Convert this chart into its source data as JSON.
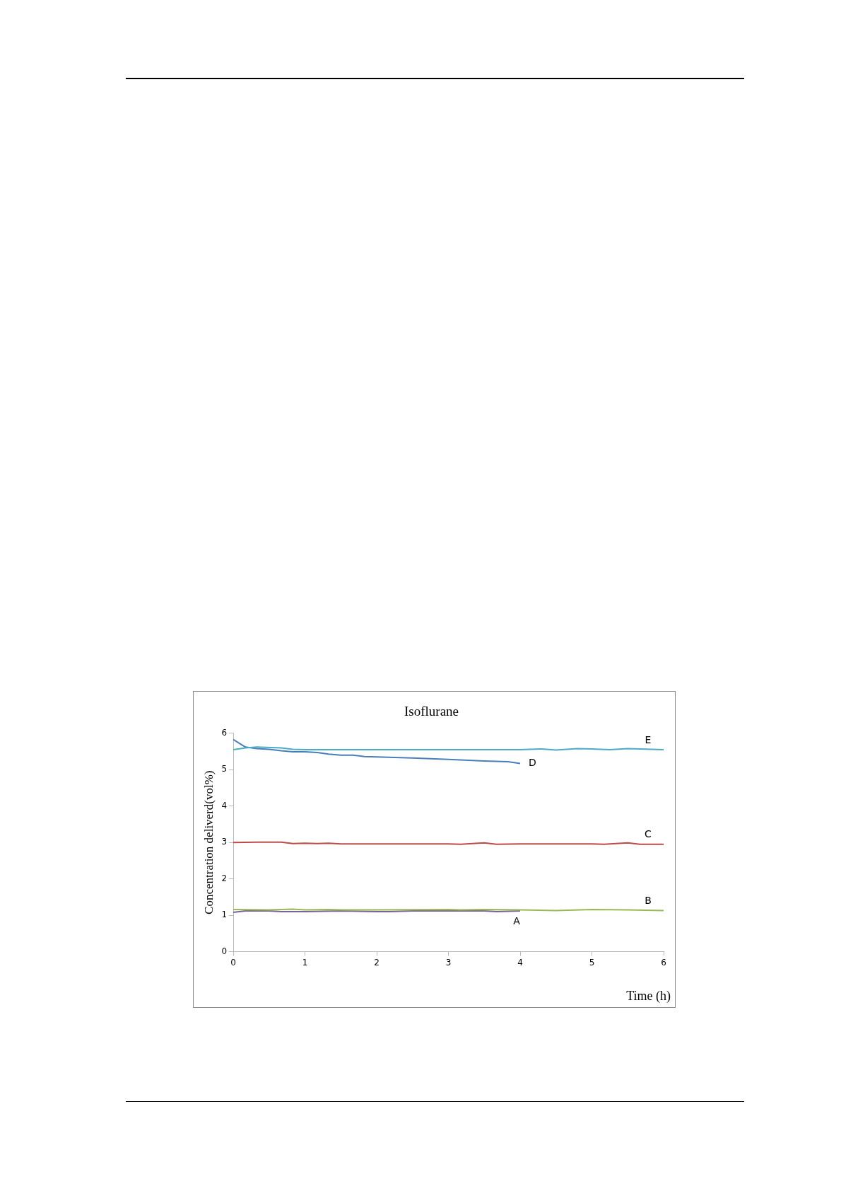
{
  "chart_data": {
    "type": "line",
    "title": "Isoflurane",
    "xlabel": "Time (h)",
    "ylabel": "Concentration deliverd(vol%)",
    "xlim": [
      0,
      6
    ],
    "xticks": [
      0,
      1,
      2,
      3,
      4,
      5,
      6
    ],
    "ylim": [
      0,
      6
    ],
    "yticks": [
      0,
      1,
      2,
      3,
      4,
      5,
      6
    ],
    "grid": false,
    "legend": false,
    "marker": "none",
    "series": [
      {
        "name": "E",
        "color": "#4bacc6",
        "x": [
          0,
          0.17,
          0.33,
          0.67,
          0.83,
          1,
          2,
          3,
          4,
          4.3,
          4.5,
          4.8,
          5,
          5.25,
          5.5,
          6
        ],
        "values": [
          5.55,
          5.6,
          5.62,
          5.6,
          5.56,
          5.55,
          5.55,
          5.55,
          5.55,
          5.57,
          5.54,
          5.58,
          5.57,
          5.55,
          5.58,
          5.55
        ]
      },
      {
        "name": "D",
        "color": "#4a7ebb",
        "x": [
          0,
          0.17,
          0.33,
          0.5,
          0.67,
          0.83,
          1,
          1.17,
          1.33,
          1.5,
          1.67,
          1.83,
          2,
          2.5,
          3,
          3.5,
          3.83,
          4
        ],
        "values": [
          5.83,
          5.62,
          5.58,
          5.56,
          5.52,
          5.49,
          5.49,
          5.47,
          5.43,
          5.4,
          5.4,
          5.36,
          5.35,
          5.32,
          5.28,
          5.24,
          5.22,
          5.17
        ]
      },
      {
        "name": "C",
        "color": "#be4b48",
        "x": [
          0,
          0.33,
          0.67,
          0.83,
          1,
          1.17,
          1.33,
          1.5,
          2,
          2.5,
          3,
          3.17,
          3.5,
          3.67,
          4,
          4.5,
          5,
          5.17,
          5.5,
          5.67,
          6
        ],
        "values": [
          3.0,
          3.01,
          3.01,
          2.97,
          2.98,
          2.97,
          2.98,
          2.96,
          2.96,
          2.96,
          2.96,
          2.95,
          2.99,
          2.95,
          2.96,
          2.96,
          2.96,
          2.95,
          2.99,
          2.95,
          2.95
        ]
      },
      {
        "name": "B",
        "color": "#98b954",
        "x": [
          0,
          0.5,
          0.83,
          1,
          1.33,
          1.5,
          2,
          3,
          3.17,
          3.5,
          4,
          4.5,
          5,
          5.5,
          6
        ],
        "values": [
          1.16,
          1.15,
          1.17,
          1.15,
          1.16,
          1.15,
          1.15,
          1.16,
          1.15,
          1.16,
          1.15,
          1.13,
          1.16,
          1.15,
          1.13
        ]
      },
      {
        "name": "A",
        "color": "#7d60a0",
        "x": [
          0,
          0.17,
          0.5,
          0.67,
          1,
          1.5,
          2,
          2.17,
          2.5,
          3,
          3.5,
          3.67,
          4
        ],
        "values": [
          1.08,
          1.12,
          1.12,
          1.1,
          1.1,
          1.12,
          1.1,
          1.1,
          1.12,
          1.12,
          1.12,
          1.1,
          1.12
        ]
      }
    ]
  }
}
